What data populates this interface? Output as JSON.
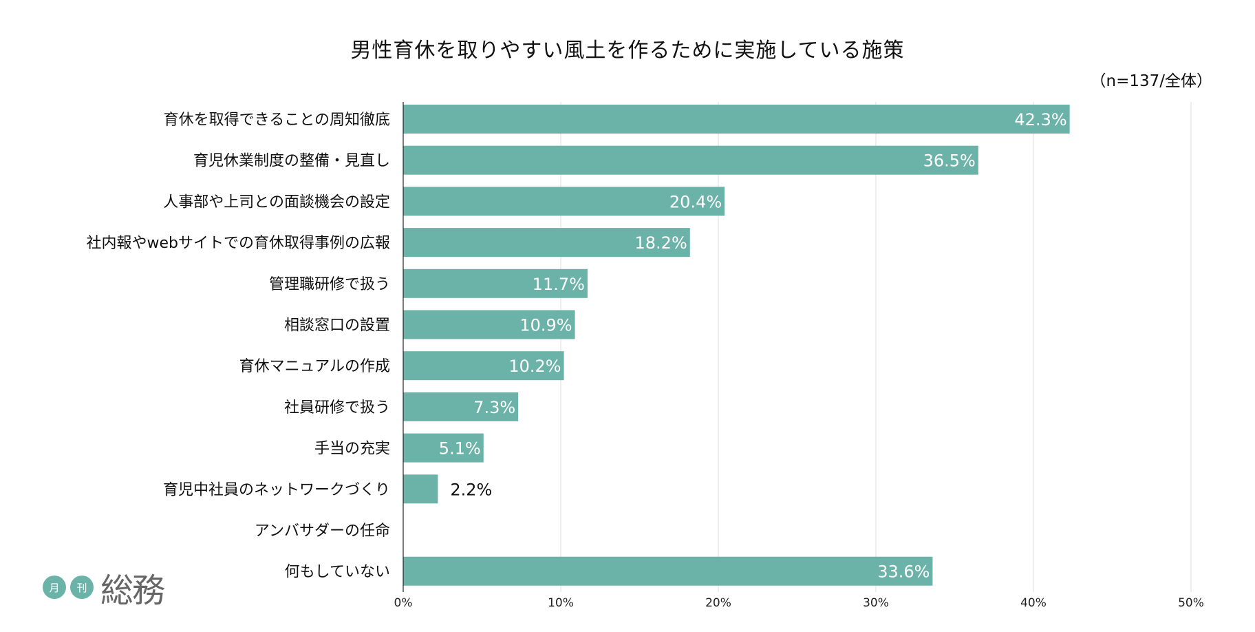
{
  "chart_data": {
    "type": "bar",
    "orientation": "horizontal",
    "title": "男性育休を取りやすい風土を作るために実施している施策",
    "subtitle": "（n=137/全体）",
    "categories": [
      "育休を取得できることの周知徹底",
      "育児休業制度の整備・見直し",
      "人事部や上司との面談機会の設定",
      "社内報やwebサイトでの育休取得事例の広報",
      "管理職研修で扱う",
      "相談窓口の設置",
      "育休マニュアルの作成",
      "社員研修で扱う",
      "手当の充実",
      "育児中社員のネットワークづくり",
      "アンバサダーの任命",
      "何もしていない"
    ],
    "values": [
      42.3,
      36.5,
      20.4,
      18.2,
      11.7,
      10.9,
      10.2,
      7.3,
      5.1,
      2.2,
      0,
      33.6
    ],
    "data_labels": [
      "42.3%",
      "36.5%",
      "20.4%",
      "18.2%",
      "11.7%",
      "10.9%",
      "10.2%",
      "7.3%",
      "5.1%",
      "2.2%",
      "",
      "33.6%"
    ],
    "xlim": [
      0,
      50
    ],
    "x_ticks": [
      "0%",
      "10%",
      "20%",
      "30%",
      "40%",
      "50%"
    ],
    "x_tick_values": [
      0,
      10,
      20,
      30,
      40,
      50
    ],
    "grid": true,
    "bar_color": "#6bb3a9"
  },
  "logo": {
    "char1": "月",
    "char2": "刊",
    "word": "総務"
  }
}
